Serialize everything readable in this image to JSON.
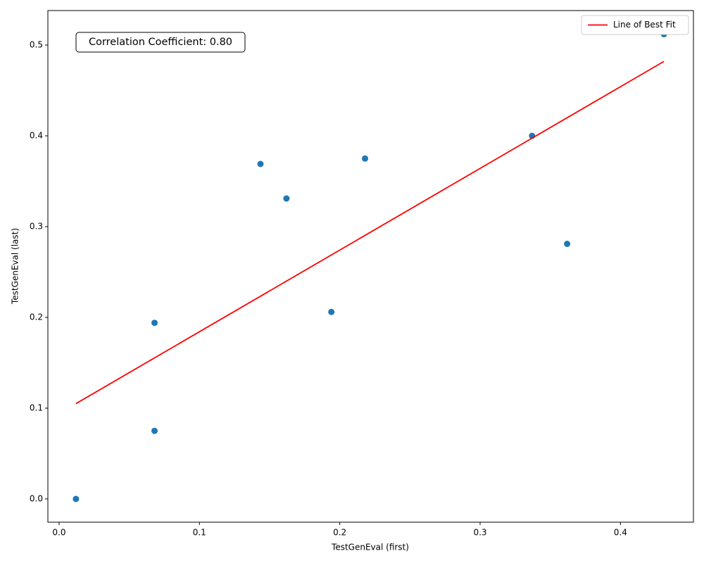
{
  "chart_data": {
    "type": "scatter",
    "xlabel": "TestGenEval (first)",
    "ylabel": "TestGenEval (last)",
    "annotation": "Correlation Coefficient: 0.80",
    "x": [
      0.012,
      0.068,
      0.068,
      0.1435,
      0.162,
      0.194,
      0.218,
      0.337,
      0.362,
      0.431
    ],
    "values": [
      0.0,
      0.075,
      0.194,
      0.369,
      0.331,
      0.206,
      0.375,
      0.4,
      0.281,
      0.512
    ],
    "color": "#1f77b4",
    "fit_line": {
      "name": "Line of Best Fit",
      "color": "#ff0000",
      "x": [
        0.012,
        0.431
      ],
      "values": [
        0.105,
        0.482
      ]
    },
    "xlim": [
      -0.008,
      0.452
    ],
    "ylim": [
      -0.0256,
      0.538
    ],
    "xticks": [
      {
        "value": 0,
        "label": "0.0"
      },
      0.1,
      0.2,
      0.3,
      0.4
    ],
    "yticks": [
      {
        "value": 0,
        "label": "0.0"
      },
      0.1,
      0.2,
      0.3,
      0.4,
      0.5
    ],
    "grid": false,
    "legend_loc": "upper right"
  }
}
